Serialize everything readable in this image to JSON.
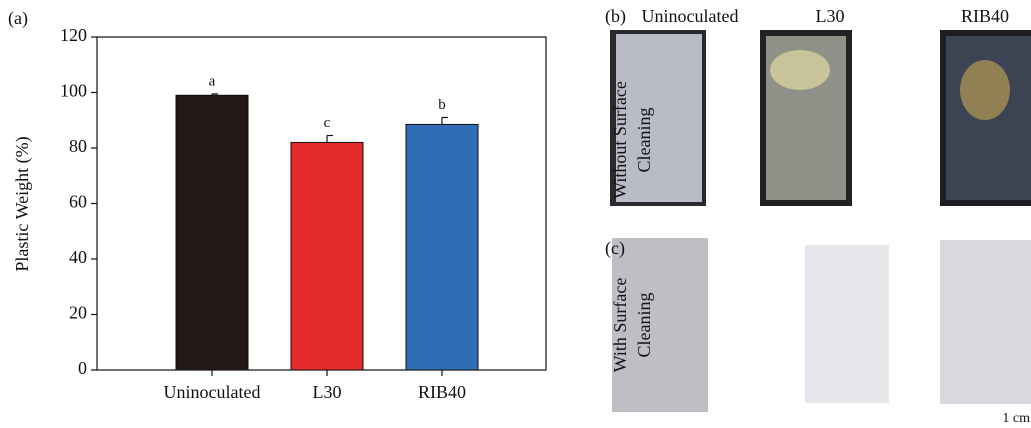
{
  "chart_data": {
    "type": "bar",
    "panel_label": "(a)",
    "ylabel": "Plastic Weight (%)",
    "categories": [
      "Uninoculated",
      "L30",
      "RIB40"
    ],
    "values": [
      99,
      82,
      88.5
    ],
    "errors": [
      0.5,
      2.5,
      2.5
    ],
    "significance_letters": [
      "a",
      "c",
      "b"
    ],
    "colors": [
      "#231815",
      "#e52b2b",
      "#2f6db5"
    ],
    "ylim": [
      0,
      120
    ],
    "yticks": [
      0,
      20,
      40,
      60,
      80,
      100,
      120
    ],
    "grid": false
  },
  "photos": {
    "panel_b": "(b)",
    "panel_c": "(c)",
    "columns": [
      "Uninoculated",
      "L30",
      "RIB40"
    ],
    "rows": [
      [
        "Without Surface",
        "Cleaning"
      ],
      [
        "With Surface",
        "Cleaning"
      ]
    ],
    "scale_bar": "1 cm"
  }
}
